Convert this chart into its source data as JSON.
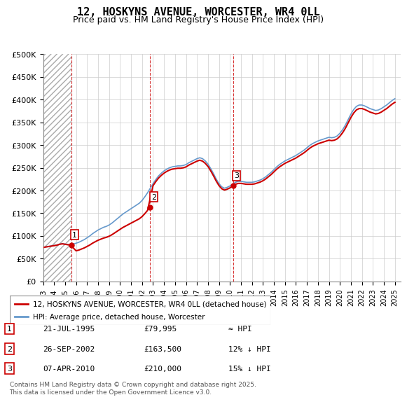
{
  "title": "12, HOSKYNS AVENUE, WORCESTER, WR4 0LL",
  "subtitle": "Price paid vs. HM Land Registry's House Price Index (HPI)",
  "title_fontsize": 11,
  "subtitle_fontsize": 9,
  "ylim": [
    0,
    500000
  ],
  "yticks": [
    0,
    50000,
    100000,
    150000,
    200000,
    250000,
    300000,
    350000,
    400000,
    450000,
    500000
  ],
  "ytick_labels": [
    "£0",
    "£50K",
    "£100K",
    "£150K",
    "£200K",
    "£250K",
    "£300K",
    "£350K",
    "£400K",
    "£450K",
    "£500K"
  ],
  "xlim_start": 1993.0,
  "xlim_end": 2025.5,
  "xtick_years": [
    1993,
    1994,
    1995,
    1996,
    1997,
    1998,
    1999,
    2000,
    2001,
    2002,
    2003,
    2004,
    2005,
    2006,
    2007,
    2008,
    2009,
    2010,
    2011,
    2012,
    2013,
    2014,
    2015,
    2016,
    2017,
    2018,
    2019,
    2020,
    2021,
    2022,
    2023,
    2024,
    2025
  ],
  "hatch_end_year": 1995.6,
  "sales": [
    {
      "num": 1,
      "year": 1995.55,
      "price": 79995,
      "label": "1"
    },
    {
      "num": 2,
      "year": 2002.73,
      "price": 163500,
      "label": "2"
    },
    {
      "num": 3,
      "year": 2010.27,
      "price": 210000,
      "label": "3"
    }
  ],
  "red_line_color": "#cc0000",
  "blue_line_color": "#6699cc",
  "hatch_color": "#dddddd",
  "grid_color": "#cccccc",
  "sale_marker_color": "#cc0000",
  "sale_box_color": "#cc0000",
  "legend_label_red": "12, HOSKYNS AVENUE, WORCESTER, WR4 0LL (detached house)",
  "legend_label_blue": "HPI: Average price, detached house, Worcester",
  "table_rows": [
    {
      "num": "1",
      "date": "21-JUL-1995",
      "price": "£79,995",
      "hpi": "≈ HPI"
    },
    {
      "num": "2",
      "date": "26-SEP-2002",
      "price": "£163,500",
      "hpi": "12% ↓ HPI"
    },
    {
      "num": "3",
      "date": "07-APR-2010",
      "price": "£210,000",
      "hpi": "15% ↓ HPI"
    }
  ],
  "footer_text": "Contains HM Land Registry data © Crown copyright and database right 2025.\nThis data is licensed under the Open Government Licence v3.0.",
  "hpi_data": {
    "years": [
      1993.0,
      1993.25,
      1993.5,
      1993.75,
      1994.0,
      1994.25,
      1994.5,
      1994.75,
      1995.0,
      1995.25,
      1995.5,
      1995.75,
      1996.0,
      1996.25,
      1996.5,
      1996.75,
      1997.0,
      1997.25,
      1997.5,
      1997.75,
      1998.0,
      1998.25,
      1998.5,
      1998.75,
      1999.0,
      1999.25,
      1999.5,
      1999.75,
      2000.0,
      2000.25,
      2000.5,
      2000.75,
      2001.0,
      2001.25,
      2001.5,
      2001.75,
      2002.0,
      2002.25,
      2002.5,
      2002.75,
      2003.0,
      2003.25,
      2003.5,
      2003.75,
      2004.0,
      2004.25,
      2004.5,
      2004.75,
      2005.0,
      2005.25,
      2005.5,
      2005.75,
      2006.0,
      2006.25,
      2006.5,
      2006.75,
      2007.0,
      2007.25,
      2007.5,
      2007.75,
      2008.0,
      2008.25,
      2008.5,
      2008.75,
      2009.0,
      2009.25,
      2009.5,
      2009.75,
      2010.0,
      2010.25,
      2010.5,
      2010.75,
      2011.0,
      2011.25,
      2011.5,
      2011.75,
      2012.0,
      2012.25,
      2012.5,
      2012.75,
      2013.0,
      2013.25,
      2013.5,
      2013.75,
      2014.0,
      2014.25,
      2014.5,
      2014.75,
      2015.0,
      2015.25,
      2015.5,
      2015.75,
      2016.0,
      2016.25,
      2016.5,
      2016.75,
      2017.0,
      2017.25,
      2017.5,
      2017.75,
      2018.0,
      2018.25,
      2018.5,
      2018.75,
      2019.0,
      2019.25,
      2019.5,
      2019.75,
      2020.0,
      2020.25,
      2020.5,
      2020.75,
      2021.0,
      2021.25,
      2021.5,
      2021.75,
      2022.0,
      2022.25,
      2022.5,
      2022.75,
      2023.0,
      2023.25,
      2023.5,
      2023.75,
      2024.0,
      2024.25,
      2024.5,
      2024.75,
      2025.0
    ],
    "values": [
      75000,
      76000,
      77000,
      78000,
      79000,
      80000,
      82000,
      83000,
      82000,
      81000,
      80000,
      82000,
      84000,
      86000,
      89000,
      92000,
      96000,
      100000,
      105000,
      109000,
      113000,
      116000,
      119000,
      121000,
      124000,
      128000,
      133000,
      138000,
      143000,
      148000,
      152000,
      156000,
      160000,
      164000,
      168000,
      172000,
      178000,
      186000,
      195000,
      205000,
      215000,
      224000,
      232000,
      238000,
      243000,
      247000,
      250000,
      252000,
      253000,
      254000,
      254000,
      255000,
      257000,
      261000,
      264000,
      267000,
      270000,
      272000,
      270000,
      265000,
      258000,
      248000,
      237000,
      225000,
      215000,
      208000,
      205000,
      207000,
      210000,
      214000,
      218000,
      220000,
      220000,
      219000,
      218000,
      218000,
      218000,
      219000,
      221000,
      223000,
      226000,
      230000,
      235000,
      240000,
      246000,
      252000,
      257000,
      261000,
      265000,
      268000,
      271000,
      274000,
      277000,
      281000,
      285000,
      289000,
      294000,
      299000,
      303000,
      306000,
      309000,
      311000,
      313000,
      315000,
      317000,
      316000,
      317000,
      320000,
      326000,
      334000,
      344000,
      356000,
      368000,
      378000,
      385000,
      388000,
      388000,
      386000,
      383000,
      380000,
      378000,
      376000,
      377000,
      380000,
      384000,
      388000,
      393000,
      398000,
      402000
    ]
  },
  "price_paid_data": {
    "years": [
      1995.55,
      2002.73,
      2010.27
    ],
    "values": [
      79995,
      163500,
      210000
    ]
  }
}
